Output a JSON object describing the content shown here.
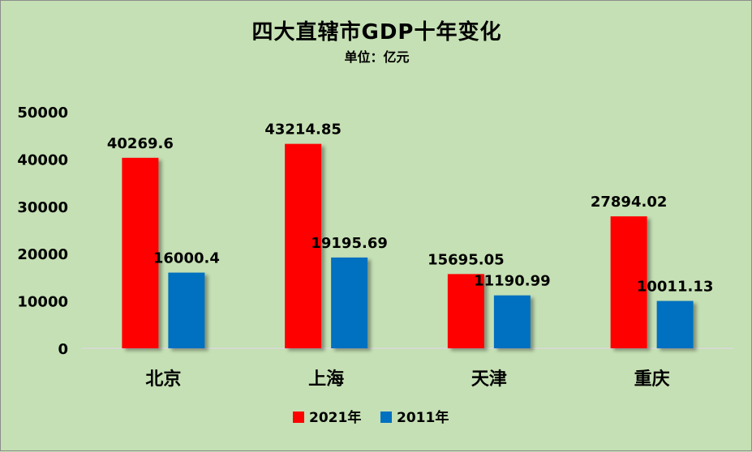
{
  "chart_data": {
    "type": "bar",
    "title": "四大直辖市GDP十年变化",
    "subtitle": "单位：亿元",
    "categories": [
      "北京",
      "上海",
      "天津",
      "重庆"
    ],
    "series": [
      {
        "name": "2021年",
        "color": "#ff0000",
        "values": [
          40269.6,
          43214.85,
          15695.05,
          27894.02
        ],
        "labels": [
          "40269.6",
          "43214.85",
          "15695.05",
          "27894.02"
        ]
      },
      {
        "name": "2011年",
        "color": "#0070c0",
        "values": [
          16000.4,
          19195.69,
          11190.99,
          10011.13
        ],
        "labels": [
          "16000.4",
          "19195.69",
          "11190.99",
          "10011.13"
        ]
      }
    ],
    "ylim": [
      0,
      50000
    ],
    "yticks": [
      0,
      10000,
      20000,
      30000,
      40000,
      50000
    ],
    "xlabel": "",
    "ylabel": "",
    "grid": false,
    "legend_position": "bottom"
  }
}
